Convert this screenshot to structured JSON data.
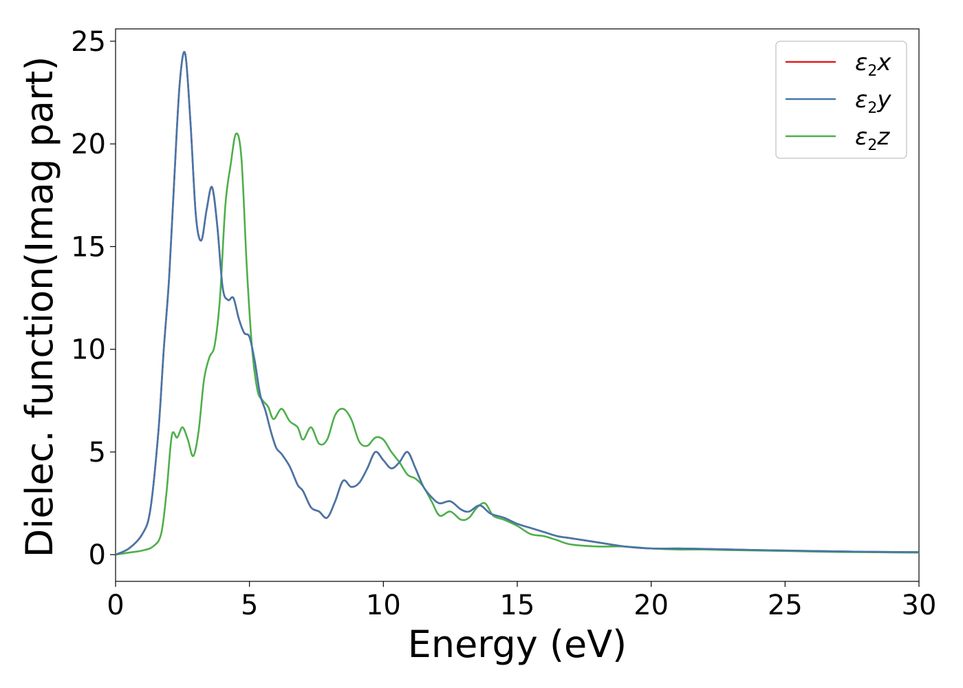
{
  "chart_data": {
    "type": "line",
    "title": "",
    "xlabel": "Energy (eV)",
    "ylabel": "Dielec. function(Imag part)",
    "xlim": [
      0,
      30
    ],
    "ylim": [
      -1.3,
      25.6
    ],
    "xticks": [
      0,
      5,
      10,
      15,
      20,
      25,
      30
    ],
    "yticks": [
      0,
      5,
      10,
      15,
      20,
      25
    ],
    "grid": false,
    "legend_position": "top-right",
    "series": [
      {
        "name": "ε2x",
        "color": "#e41a1c",
        "x": [
          0,
          0.5,
          1,
          1.3,
          1.6,
          1.8,
          2.0,
          2.2,
          2.4,
          2.6,
          2.8,
          3.0,
          3.2,
          3.4,
          3.6,
          3.8,
          4.0,
          4.2,
          4.4,
          4.6,
          4.8,
          5.0,
          5.2,
          5.4,
          5.6,
          5.8,
          6.0,
          6.2,
          6.5,
          6.8,
          7.0,
          7.3,
          7.6,
          7.9,
          8.2,
          8.5,
          8.8,
          9.1,
          9.4,
          9.7,
          10.0,
          10.3,
          10.6,
          10.9,
          11.2,
          11.5,
          11.8,
          12.1,
          12.5,
          12.9,
          13.2,
          13.6,
          14.0,
          14.5,
          15.0,
          15.5,
          16.0,
          16.5,
          17.0,
          18.0,
          19.0,
          20.0,
          21.0,
          22.0,
          23.0,
          24.0,
          25.0,
          26.0,
          27.0,
          28.0,
          29.0,
          30.0
        ],
        "values": [
          0,
          0.3,
          1.0,
          2.2,
          6.0,
          10.0,
          13.5,
          18.5,
          23.0,
          24.4,
          21.0,
          16.5,
          15.3,
          16.8,
          17.9,
          16.0,
          13.0,
          12.4,
          12.5,
          11.5,
          10.8,
          10.6,
          9.4,
          7.8,
          7.0,
          6.0,
          5.2,
          4.9,
          4.3,
          3.4,
          3.1,
          2.3,
          2.1,
          1.8,
          2.6,
          3.6,
          3.3,
          3.5,
          4.2,
          5.0,
          4.6,
          4.2,
          4.5,
          5.0,
          4.2,
          3.3,
          2.8,
          2.5,
          2.6,
          2.2,
          2.1,
          2.4,
          2.0,
          1.8,
          1.5,
          1.3,
          1.1,
          0.9,
          0.8,
          0.6,
          0.4,
          0.3,
          0.3,
          0.28,
          0.25,
          0.22,
          0.2,
          0.18,
          0.16,
          0.14,
          0.13,
          0.12
        ]
      },
      {
        "name": "ε2y",
        "color": "#4477aa",
        "x": [
          0,
          0.5,
          1,
          1.3,
          1.6,
          1.8,
          2.0,
          2.2,
          2.4,
          2.6,
          2.8,
          3.0,
          3.2,
          3.4,
          3.6,
          3.8,
          4.0,
          4.2,
          4.4,
          4.6,
          4.8,
          5.0,
          5.2,
          5.4,
          5.6,
          5.8,
          6.0,
          6.2,
          6.5,
          6.8,
          7.0,
          7.3,
          7.6,
          7.9,
          8.2,
          8.5,
          8.8,
          9.1,
          9.4,
          9.7,
          10.0,
          10.3,
          10.6,
          10.9,
          11.2,
          11.5,
          11.8,
          12.1,
          12.5,
          12.9,
          13.2,
          13.6,
          14.0,
          14.5,
          15.0,
          15.5,
          16.0,
          16.5,
          17.0,
          18.0,
          19.0,
          20.0,
          21.0,
          22.0,
          23.0,
          24.0,
          25.0,
          26.0,
          27.0,
          28.0,
          29.0,
          30.0
        ],
        "values": [
          0,
          0.3,
          1.0,
          2.2,
          6.0,
          10.0,
          13.5,
          18.5,
          23.0,
          24.4,
          21.0,
          16.5,
          15.3,
          16.8,
          17.9,
          16.0,
          13.0,
          12.4,
          12.5,
          11.5,
          10.8,
          10.6,
          9.4,
          7.8,
          7.0,
          6.0,
          5.2,
          4.9,
          4.3,
          3.4,
          3.1,
          2.3,
          2.1,
          1.8,
          2.6,
          3.6,
          3.3,
          3.5,
          4.2,
          5.0,
          4.6,
          4.2,
          4.5,
          5.0,
          4.2,
          3.3,
          2.8,
          2.5,
          2.6,
          2.2,
          2.1,
          2.4,
          2.0,
          1.8,
          1.5,
          1.3,
          1.1,
          0.9,
          0.8,
          0.6,
          0.4,
          0.3,
          0.3,
          0.28,
          0.25,
          0.22,
          0.2,
          0.18,
          0.16,
          0.14,
          0.13,
          0.12
        ]
      },
      {
        "name": "ε2z",
        "color": "#4daf4a",
        "x": [
          0,
          0.5,
          1,
          1.4,
          1.7,
          1.9,
          2.1,
          2.3,
          2.5,
          2.7,
          2.9,
          3.1,
          3.3,
          3.5,
          3.7,
          3.9,
          4.1,
          4.3,
          4.5,
          4.7,
          4.9,
          5.1,
          5.3,
          5.5,
          5.7,
          5.9,
          6.2,
          6.5,
          6.8,
          7.0,
          7.3,
          7.6,
          7.9,
          8.2,
          8.5,
          8.8,
          9.1,
          9.4,
          9.7,
          10.0,
          10.3,
          10.6,
          10.9,
          11.2,
          11.5,
          11.8,
          12.1,
          12.5,
          12.9,
          13.2,
          13.5,
          13.8,
          14.1,
          14.5,
          15.0,
          15.5,
          16.0,
          16.5,
          17.0,
          18.0,
          19.0,
          20.0,
          21.0,
          22.0,
          23.0,
          24.0,
          25.0,
          26.0,
          27.0,
          28.0,
          29.0,
          30.0
        ],
        "values": [
          0,
          0.1,
          0.2,
          0.4,
          1.0,
          3.0,
          5.8,
          5.7,
          6.2,
          5.6,
          4.8,
          6.0,
          8.5,
          9.6,
          10.2,
          12.5,
          17.0,
          19.0,
          20.5,
          19.3,
          14.0,
          10.0,
          8.0,
          7.5,
          7.2,
          6.6,
          7.1,
          6.5,
          6.2,
          5.6,
          6.2,
          5.4,
          5.6,
          6.8,
          7.1,
          6.6,
          5.5,
          5.3,
          5.7,
          5.6,
          5.0,
          4.5,
          3.9,
          3.7,
          3.3,
          2.6,
          1.9,
          2.1,
          1.7,
          1.8,
          2.3,
          2.5,
          1.9,
          1.7,
          1.4,
          1.0,
          0.9,
          0.7,
          0.5,
          0.4,
          0.4,
          0.3,
          0.25,
          0.25,
          0.22,
          0.2,
          0.18,
          0.15,
          0.13,
          0.12,
          0.11,
          0.1
        ]
      }
    ]
  }
}
